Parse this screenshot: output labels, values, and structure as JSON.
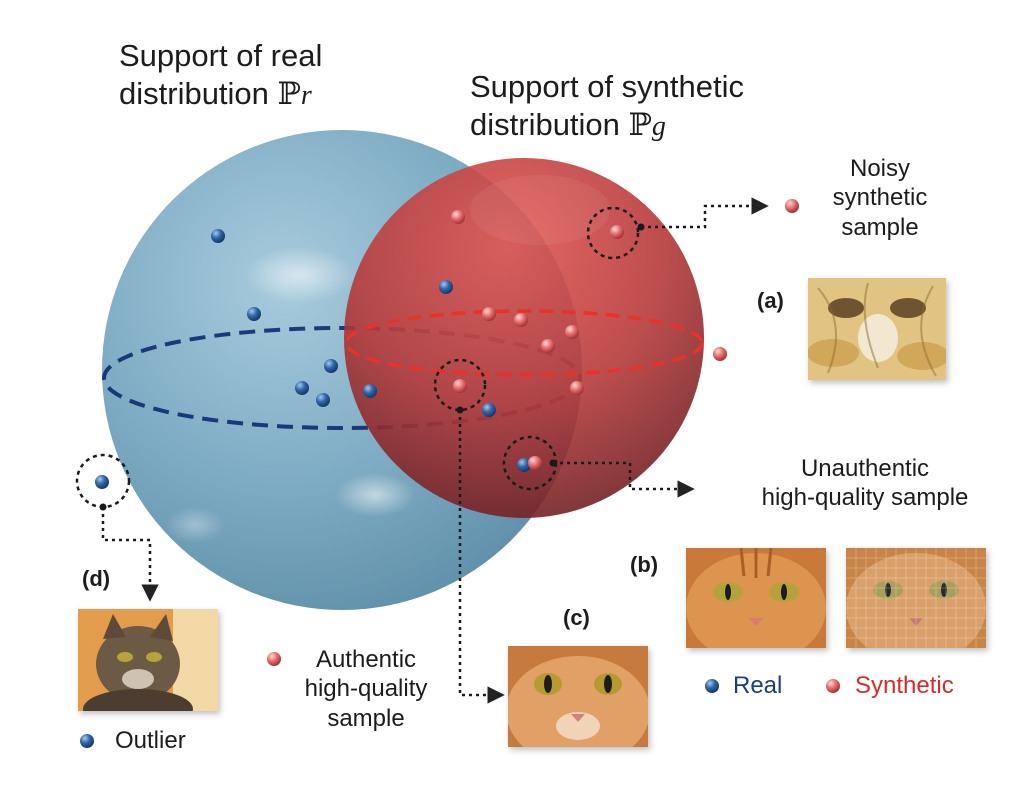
{
  "titles": {
    "real_line1": "Support of real",
    "real_line2": "distribution",
    "real_symbol": "ℙ",
    "real_subscript": "r",
    "synthetic_line1": "Support of synthetic",
    "synthetic_line2": "distribution",
    "synthetic_symbol": "ℙ",
    "synthetic_subscript": "g"
  },
  "annotations": {
    "a": {
      "tag": "(a)",
      "line1": "Noisy",
      "line2": "synthetic",
      "line3": "sample"
    },
    "b": {
      "tag": "(b)",
      "line1": "Unauthentic",
      "line2": "high-quality sample"
    },
    "c": {
      "tag": "(c)",
      "line1": "Authentic",
      "line2": "high-quality",
      "line3": "sample"
    },
    "d": {
      "tag": "(d)",
      "line1": "Outlier"
    }
  },
  "legend": {
    "real": "Real",
    "synthetic": "Synthetic"
  },
  "colors": {
    "real_sphere": "#7aa7c0",
    "synthetic_sphere": "#c8403f",
    "real_point": "#2a62a8",
    "synthetic_point": "#e06a6a",
    "real_text": "#1a3d7c",
    "synthetic_text": "#d72b2b",
    "equator_real": "#0f2b6e",
    "equator_synthetic": "#e8322b"
  },
  "images": {
    "a": "noisy-cat-face-image",
    "b_real": "real-orange-cat-image",
    "b_synthetic": "synthetic-textured-cat-image",
    "c": "orange-cat-face-image",
    "d": "tabby-cat-image"
  }
}
